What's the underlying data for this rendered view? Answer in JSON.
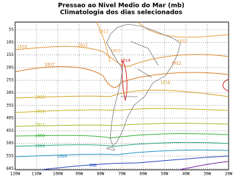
{
  "header": {
    "title": "Pressao ao Nivel Medio do Mar (mb)",
    "subtitle": "Climatologia dos dias selecionados"
  },
  "map": {
    "lat_labels": [
      "5S",
      "10S",
      "15S",
      "20S",
      "25S",
      "30S",
      "35S",
      "40S",
      "45S",
      "50S",
      "55S",
      "60S"
    ],
    "lon_labels": [
      "120W",
      "110W",
      "100W",
      "90W",
      "80W",
      "70W",
      "60W",
      "50W",
      "40W",
      "30W",
      "20W"
    ],
    "contour_labels": [
      "1012",
      "1014",
      "1012",
      "1013",
      "1012",
      "1017",
      "1014",
      "1012",
      "1016",
      "1012",
      "1014",
      "1011",
      "1008",
      "1004",
      "1000",
      "996"
    ]
  }
}
